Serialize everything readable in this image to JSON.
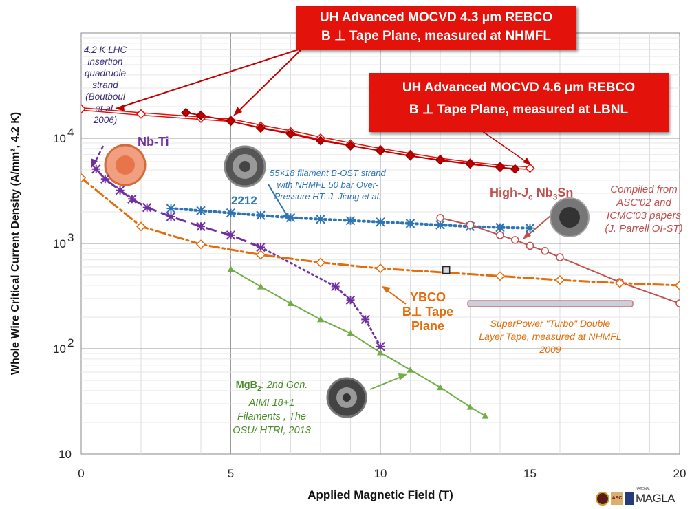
{
  "chart_data": {
    "type": "line",
    "xlabel": "Applied Magnetic Field (T)",
    "ylabel": "Whole Wire Critical Current Density (A/mm², 4.2 K)",
    "xlim": [
      0,
      20
    ],
    "ylim": [
      10,
      100000
    ],
    "yscale": "log",
    "grid": true,
    "xticks": [
      "0",
      "5",
      "10",
      "15",
      "20"
    ],
    "yticks": [
      {
        "base": "10",
        "exp": ""
      },
      {
        "base": "10",
        "exp": "2"
      },
      {
        "base": "10",
        "exp": "3"
      },
      {
        "base": "10",
        "exp": "4"
      }
    ],
    "series": [
      {
        "color": "#e3120b",
        "marker": "diamond",
        "style": "double-solid",
        "x": [
          0,
          2,
          4,
          5,
          6,
          7,
          8,
          9,
          10,
          11,
          12,
          13,
          14,
          15
        ],
        "y": [
          19000,
          17000,
          15500,
          14800,
          13000,
          11500,
          10000,
          8800,
          7800,
          7000,
          6300,
          5800,
          5400,
          5200
        ]
      },
      {
        "color": "#c00000",
        "marker": "filled-diamond",
        "style": "solid",
        "x": [
          3.5,
          4,
          5,
          6,
          7,
          8,
          9,
          10,
          11,
          12,
          13,
          14,
          14.5
        ],
        "y": [
          17500,
          16500,
          14500,
          12500,
          11000,
          9500,
          8500,
          7600,
          6800,
          6200,
          5700,
          5300,
          5100
        ]
      },
      {
        "color": "#7030a0",
        "marker": "asterisk",
        "style": "long-dash-then-dot",
        "x": [
          0.5,
          0.8,
          1.3,
          1.7,
          2.2,
          3.0,
          4.0,
          5.0,
          6.0,
          8.5,
          9.0,
          9.5,
          10.0
        ],
        "y": [
          5100,
          4100,
          3200,
          2650,
          2200,
          1800,
          1450,
          1200,
          920,
          390,
          290,
          190,
          105
        ]
      },
      {
        "color": "#2e74b5",
        "marker": "asterisk",
        "style": "dotted",
        "x": [
          3,
          4,
          5,
          6,
          7,
          8,
          9,
          10,
          11,
          12,
          13,
          14,
          15
        ],
        "y": [
          2150,
          2050,
          1950,
          1850,
          1760,
          1700,
          1650,
          1600,
          1550,
          1500,
          1450,
          1420,
          1400
        ]
      },
      {
        "color": "#c0504d",
        "marker": "open-circle",
        "style": "solid",
        "x": [
          12,
          13,
          14,
          14.5,
          15,
          15.5,
          16,
          18,
          20
        ],
        "y": [
          1750,
          1500,
          1200,
          1080,
          950,
          850,
          740,
          430,
          270
        ]
      },
      {
        "color": "#e46c0a",
        "marker": "diamond",
        "style": "dash-dot",
        "x": [
          0,
          2,
          4,
          6,
          8,
          10,
          14,
          16,
          18,
          20
        ],
        "y": [
          4200,
          1450,
          980,
          780,
          660,
          580,
          490,
          450,
          420,
          400
        ]
      },
      {
        "color": "#70ad47",
        "marker": "triangle",
        "style": "solid",
        "x": [
          5,
          6,
          7,
          8,
          9,
          10,
          11,
          12,
          13,
          13.5
        ],
        "y": [
          570,
          390,
          270,
          190,
          140,
          92,
          63,
          43,
          28,
          23
        ]
      }
    ],
    "extra_point": {
      "x": 12.2,
      "y": 560
    }
  },
  "annotations": {
    "box1": [
      "UH Advanced MOCVD 4.3 μm REBCO",
      "B ⊥ Tape Plane, measured at NHMFL"
    ],
    "box2": [
      "UH Advanced MOCVD 4.6 μm REBCO",
      "B ⊥ Tape Plane, measured at LBNL"
    ],
    "lhc_note": [
      "4.2 K LHC",
      "insertion",
      "quadruole",
      "strand",
      "(Boutboul",
      "et al.",
      "2006)"
    ],
    "nbti_label": "Nb-Ti",
    "bi2212_note": [
      "55×18 filament B-OST strand",
      "with NHMFL 50 bar Over-",
      "Pressure HT. J. Jiang et al."
    ],
    "bi2212_label": "2212",
    "nb3sn_label": {
      "pre": "High-",
      "j": "J",
      "sub_c": "c",
      "mid": " Nb",
      "sub_3": "3",
      "post": "Sn"
    },
    "nb3sn_note": [
      "Compiled from",
      "ASC'02 and",
      "ICMC'03 papers",
      "(J. Parrell OI-ST)"
    ],
    "ybco_label": [
      "YBCO",
      "B⊥ Tape",
      "Plane"
    ],
    "superpower_note": [
      "SuperPower \"Turbo\" Double",
      "Layer Tape, measured at NHMFL",
      "2009"
    ],
    "mgb2_note": {
      "title_pre": "MgB",
      "title_sub": "2",
      "title_post": ": 2nd Gen.",
      "lines": [
        "AIMI 18+1",
        "Filaments , The",
        "OSU/ HTRI, 2013"
      ]
    },
    "logo_text": "MAGLA",
    "logo_small": "NATIONAL",
    "logo_asc": "ASC"
  }
}
